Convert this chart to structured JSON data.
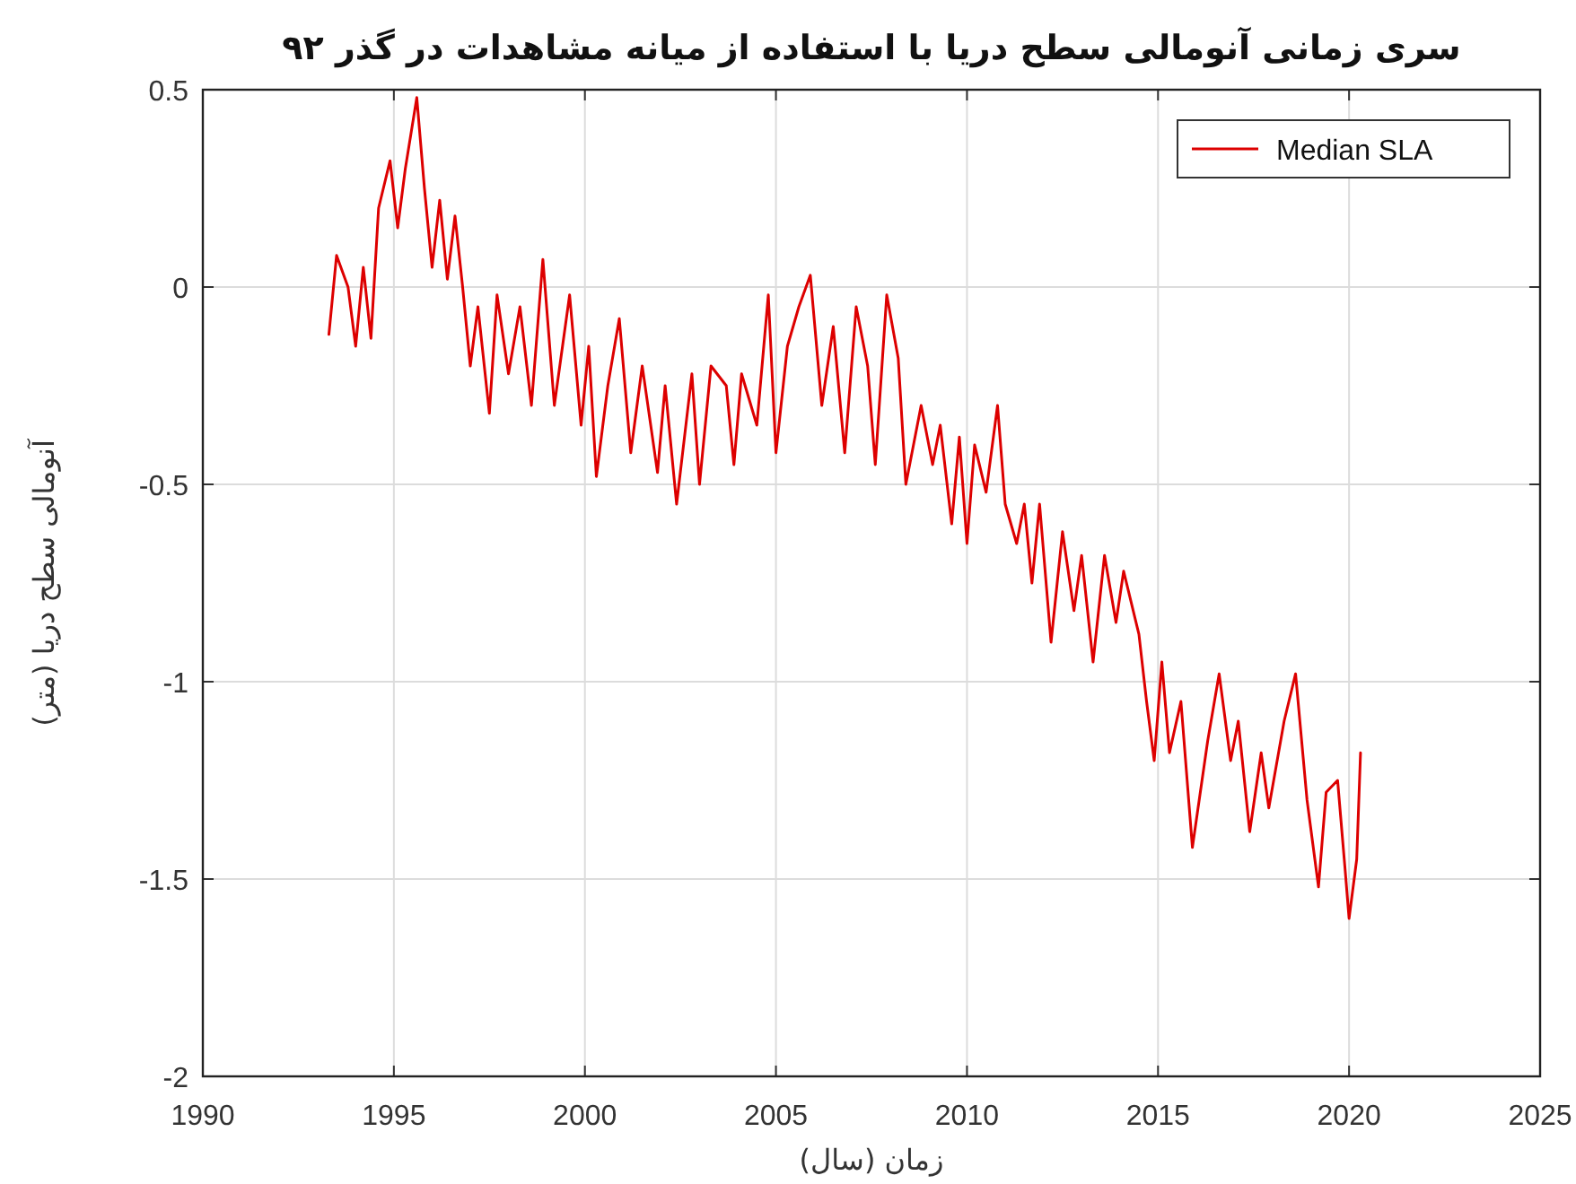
{
  "chart_data": {
    "type": "line",
    "title": "سری زمانی آنومالی سطح دریا با استفاده از میانه مشاهدات در گذر ۹۲",
    "xlabel": "زمان (سال)",
    "ylabel": "آنومالی سطح دریا (متر)",
    "xlim": [
      1990,
      2025
    ],
    "xticks": [
      1990,
      1995,
      2000,
      2005,
      2010,
      2015,
      2020,
      2025
    ],
    "ylim": [
      -2,
      0.5
    ],
    "yticks": [
      -2,
      -1.5,
      -1,
      -0.5,
      0,
      0.5
    ],
    "grid": true,
    "legend": "top right",
    "marker": "none",
    "line_style": "solid",
    "x": [
      1993.3,
      1993.5,
      1993.8,
      1994.0,
      1994.2,
      1994.4,
      1994.6,
      1994.9,
      1995.1,
      1995.3,
      1995.6,
      1995.8,
      1996.0,
      1996.2,
      1996.4,
      1996.6,
      1996.8,
      1997.0,
      1997.2,
      1997.5,
      1997.7,
      1998.0,
      1998.3,
      1998.6,
      1998.9,
      1999.2,
      1999.6,
      1999.9,
      2000.1,
      2000.3,
      2000.6,
      2000.9,
      2001.2,
      2001.5,
      2001.9,
      2002.1,
      2002.4,
      2002.8,
      2003.0,
      2003.3,
      2003.7,
      2003.9,
      2004.1,
      2004.5,
      2004.8,
      2005.0,
      2005.3,
      2005.6,
      2005.9,
      2006.2,
      2006.5,
      2006.8,
      2007.1,
      2007.4,
      2007.6,
      2007.9,
      2008.2,
      2008.4,
      2008.8,
      2009.1,
      2009.3,
      2009.6,
      2009.8,
      2010.0,
      2010.2,
      2010.5,
      2010.8,
      2011.0,
      2011.3,
      2011.5,
      2011.7,
      2011.9,
      2012.2,
      2012.5,
      2012.8,
      2013.0,
      2013.3,
      2013.6,
      2013.9,
      2014.1,
      2014.5,
      2014.7,
      2014.9,
      2015.1,
      2015.3,
      2015.6,
      2015.9,
      2016.3,
      2016.6,
      2016.9,
      2017.1,
      2017.4,
      2017.7,
      2017.9,
      2018.3,
      2018.6,
      2018.9,
      2019.2,
      2019.4,
      2019.7,
      2019.9,
      2020.0,
      2020.2,
      2020.3
    ],
    "series": [
      {
        "name": "Median SLA",
        "color": "#dd0000",
        "values": [
          -0.12,
          0.08,
          0.0,
          -0.15,
          0.05,
          -0.13,
          0.2,
          0.32,
          0.15,
          0.3,
          0.48,
          0.25,
          0.05,
          0.22,
          0.02,
          0.18,
          0.0,
          -0.2,
          -0.05,
          -0.32,
          -0.02,
          -0.22,
          -0.05,
          -0.3,
          0.07,
          -0.3,
          -0.02,
          -0.35,
          -0.15,
          -0.48,
          -0.25,
          -0.08,
          -0.42,
          -0.2,
          -0.47,
          -0.25,
          -0.55,
          -0.22,
          -0.5,
          -0.2,
          -0.25,
          -0.45,
          -0.22,
          -0.35,
          -0.02,
          -0.42,
          -0.15,
          -0.05,
          0.03,
          -0.3,
          -0.1,
          -0.42,
          -0.05,
          -0.2,
          -0.45,
          -0.02,
          -0.18,
          -0.5,
          -0.3,
          -0.45,
          -0.35,
          -0.6,
          -0.38,
          -0.65,
          -0.4,
          -0.52,
          -0.3,
          -0.55,
          -0.65,
          -0.55,
          -0.75,
          -0.55,
          -0.9,
          -0.62,
          -0.82,
          -0.68,
          -0.95,
          -0.68,
          -0.85,
          -0.72,
          -0.88,
          -1.05,
          -1.2,
          -0.95,
          -1.18,
          -1.05,
          -1.42,
          -1.15,
          -0.98,
          -1.2,
          -1.1,
          -1.38,
          -1.18,
          -1.32,
          -1.1,
          -0.98,
          -1.3,
          -1.52,
          -1.28,
          -1.25,
          -1.48,
          -1.6,
          -1.45,
          -1.18
        ]
      }
    ]
  }
}
